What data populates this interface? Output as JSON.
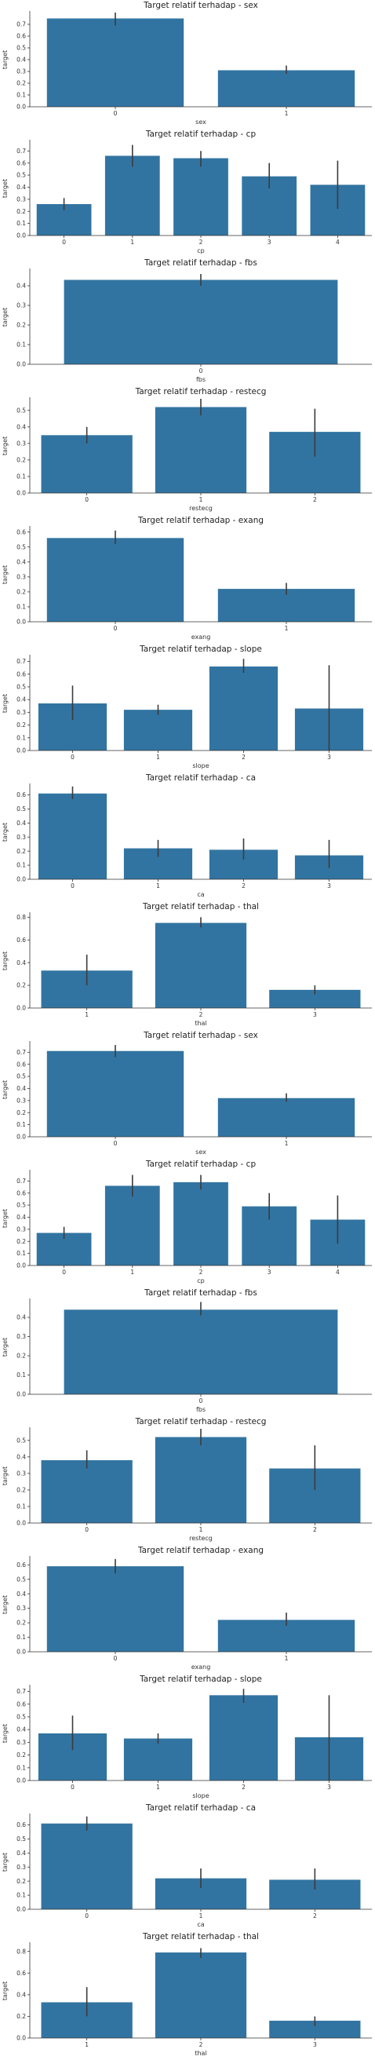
{
  "chart_data": [
    {
      "type": "bar",
      "title": "Target relatif terhadap - sex",
      "xlabel": "sex",
      "ylabel": "target",
      "categories": [
        "0",
        "1"
      ],
      "values": [
        0.75,
        0.31
      ],
      "errors": [
        [
          0.69,
          0.8
        ],
        [
          0.28,
          0.35
        ]
      ],
      "ylim": [
        0,
        0.8
      ],
      "yticks": [
        "0.0",
        "0.1",
        "0.2",
        "0.3",
        "0.4",
        "0.5",
        "0.6",
        "0.7"
      ]
    },
    {
      "type": "bar",
      "title": "Target relatif terhadap - cp",
      "xlabel": "cp",
      "ylabel": "target",
      "categories": [
        "0",
        "1",
        "2",
        "3",
        "4"
      ],
      "values": [
        0.26,
        0.66,
        0.64,
        0.49,
        0.42
      ],
      "errors": [
        [
          0.21,
          0.31
        ],
        [
          0.57,
          0.75
        ],
        [
          0.57,
          0.7
        ],
        [
          0.39,
          0.6
        ],
        [
          0.22,
          0.62
        ]
      ],
      "ylim": [
        0,
        0.78
      ],
      "yticks": [
        "0.0",
        "0.1",
        "0.2",
        "0.3",
        "0.4",
        "0.5",
        "0.6",
        "0.7"
      ]
    },
    {
      "type": "bar",
      "title": "Target relatif terhadap - fbs",
      "xlabel": "fbs",
      "ylabel": "target",
      "categories": [
        "0"
      ],
      "values": [
        0.43
      ],
      "errors": [
        [
          0.4,
          0.46
        ]
      ],
      "ylim": [
        0,
        0.48
      ],
      "yticks": [
        "0.0",
        "0.1",
        "0.2",
        "0.3",
        "0.4"
      ]
    },
    {
      "type": "bar",
      "title": "Target relatif terhadap - restecg",
      "xlabel": "restecg",
      "ylabel": "target",
      "categories": [
        "0",
        "1",
        "2"
      ],
      "values": [
        0.35,
        0.52,
        0.37
      ],
      "errors": [
        [
          0.3,
          0.4
        ],
        [
          0.47,
          0.57
        ],
        [
          0.22,
          0.51
        ]
      ],
      "ylim": [
        0,
        0.57
      ],
      "yticks": [
        "0.0",
        "0.1",
        "0.2",
        "0.3",
        "0.4",
        "0.5"
      ]
    },
    {
      "type": "bar",
      "title": "Target relatif terhadap - exang",
      "xlabel": "exang",
      "ylabel": "target",
      "categories": [
        "0",
        "1"
      ],
      "values": [
        0.56,
        0.22
      ],
      "errors": [
        [
          0.52,
          0.61
        ],
        [
          0.18,
          0.26
        ]
      ],
      "ylim": [
        0,
        0.63
      ],
      "yticks": [
        "0.0",
        "0.1",
        "0.2",
        "0.3",
        "0.4",
        "0.5",
        "0.6"
      ]
    },
    {
      "type": "bar",
      "title": "Target relatif terhadap - slope",
      "xlabel": "slope",
      "ylabel": "target",
      "categories": [
        "0",
        "1",
        "2",
        "3"
      ],
      "values": [
        0.37,
        0.32,
        0.66,
        0.33
      ],
      "errors": [
        [
          0.24,
          0.51
        ],
        [
          0.28,
          0.36
        ],
        [
          0.61,
          0.72
        ],
        [
          0.0,
          0.67
        ]
      ],
      "ylim": [
        0,
        0.74
      ],
      "yticks": [
        "0.0",
        "0.1",
        "0.2",
        "0.3",
        "0.4",
        "0.5",
        "0.6",
        "0.7"
      ]
    },
    {
      "type": "bar",
      "title": "Target relatif terhadap - ca",
      "xlabel": "ca",
      "ylabel": "target",
      "categories": [
        "0",
        "1",
        "2",
        "3"
      ],
      "values": [
        0.61,
        0.22,
        0.21,
        0.17
      ],
      "errors": [
        [
          0.57,
          0.66
        ],
        [
          0.16,
          0.28
        ],
        [
          0.14,
          0.29
        ],
        [
          0.08,
          0.28
        ]
      ],
      "ylim": [
        0,
        0.67
      ],
      "yticks": [
        "0.0",
        "0.1",
        "0.2",
        "0.3",
        "0.4",
        "0.5",
        "0.6"
      ]
    },
    {
      "type": "bar",
      "title": "Target relatif terhadap - thal",
      "xlabel": "thal",
      "ylabel": "target",
      "categories": [
        "1",
        "2",
        "3"
      ],
      "values": [
        0.33,
        0.75,
        0.16
      ],
      "errors": [
        [
          0.2,
          0.47
        ],
        [
          0.71,
          0.8
        ],
        [
          0.12,
          0.2
        ]
      ],
      "ylim": [
        0,
        0.83
      ],
      "yticks": [
        "0.0",
        "0.2",
        "0.4",
        "0.6",
        "0.8"
      ]
    },
    {
      "type": "bar",
      "title": "Target relatif terhadap - sex",
      "xlabel": "sex",
      "ylabel": "target",
      "categories": [
        "0",
        "1"
      ],
      "values": [
        0.71,
        0.32
      ],
      "errors": [
        [
          0.66,
          0.76
        ],
        [
          0.29,
          0.36
        ]
      ],
      "ylim": [
        0,
        0.78
      ],
      "yticks": [
        "0.0",
        "0.1",
        "0.2",
        "0.3",
        "0.4",
        "0.5",
        "0.6",
        "0.7"
      ]
    },
    {
      "type": "bar",
      "title": "Target relatif terhadap - cp",
      "xlabel": "cp",
      "ylabel": "target",
      "categories": [
        "0",
        "1",
        "2",
        "3",
        "4"
      ],
      "values": [
        0.27,
        0.66,
        0.69,
        0.49,
        0.38
      ],
      "errors": [
        [
          0.22,
          0.32
        ],
        [
          0.57,
          0.75
        ],
        [
          0.63,
          0.75
        ],
        [
          0.38,
          0.6
        ],
        [
          0.18,
          0.58
        ]
      ],
      "ylim": [
        0,
        0.78
      ],
      "yticks": [
        "0.0",
        "0.1",
        "0.2",
        "0.3",
        "0.4",
        "0.5",
        "0.6",
        "0.7"
      ]
    },
    {
      "type": "bar",
      "title": "Target relatif terhadap - fbs",
      "xlabel": "fbs",
      "ylabel": "target",
      "categories": [
        "0"
      ],
      "values": [
        0.44
      ],
      "errors": [
        [
          0.41,
          0.48
        ]
      ],
      "ylim": [
        0,
        0.49
      ],
      "yticks": [
        "0.0",
        "0.1",
        "0.2",
        "0.3",
        "0.4"
      ]
    },
    {
      "type": "bar",
      "title": "Target relatif terhadap - restecg",
      "xlabel": "restecg",
      "ylabel": "target",
      "categories": [
        "0",
        "1",
        "2"
      ],
      "values": [
        0.38,
        0.52,
        0.33
      ],
      "errors": [
        [
          0.33,
          0.44
        ],
        [
          0.47,
          0.57
        ],
        [
          0.2,
          0.47
        ]
      ],
      "ylim": [
        0,
        0.57
      ],
      "yticks": [
        "0.0",
        "0.1",
        "0.2",
        "0.3",
        "0.4",
        "0.5"
      ]
    },
    {
      "type": "bar",
      "title": "Target relatif terhadap - exang",
      "xlabel": "exang",
      "ylabel": "target",
      "categories": [
        "0",
        "1"
      ],
      "values": [
        0.59,
        0.22
      ],
      "errors": [
        [
          0.54,
          0.64
        ],
        [
          0.18,
          0.27
        ]
      ],
      "ylim": [
        0,
        0.65
      ],
      "yticks": [
        "0.0",
        "0.1",
        "0.2",
        "0.3",
        "0.4",
        "0.5",
        "0.6"
      ]
    },
    {
      "type": "bar",
      "title": "Target relatif terhadap - slope",
      "xlabel": "slope",
      "ylabel": "target",
      "categories": [
        "0",
        "1",
        "2",
        "3"
      ],
      "values": [
        0.37,
        0.33,
        0.67,
        0.34
      ],
      "errors": [
        [
          0.24,
          0.51
        ],
        [
          0.29,
          0.37
        ],
        [
          0.61,
          0.72
        ],
        [
          0.0,
          0.67
        ]
      ],
      "ylim": [
        0,
        0.74
      ],
      "yticks": [
        "0.0",
        "0.1",
        "0.2",
        "0.3",
        "0.4",
        "0.5",
        "0.6",
        "0.7"
      ]
    },
    {
      "type": "bar",
      "title": "Target relatif terhadap - ca",
      "xlabel": "ca",
      "ylabel": "target",
      "categories": [
        "0",
        "1",
        "2"
      ],
      "values": [
        0.61,
        0.22,
        0.21
      ],
      "errors": [
        [
          0.56,
          0.66
        ],
        [
          0.15,
          0.29
        ],
        [
          0.14,
          0.29
        ]
      ],
      "ylim": [
        0,
        0.67
      ],
      "yticks": [
        "0.0",
        "0.1",
        "0.2",
        "0.3",
        "0.4",
        "0.5",
        "0.6"
      ]
    },
    {
      "type": "bar",
      "title": "Target relatif terhadap - thal",
      "xlabel": "thal",
      "ylabel": "target",
      "categories": [
        "1",
        "2",
        "3"
      ],
      "values": [
        0.33,
        0.79,
        0.16
      ],
      "errors": [
        [
          0.2,
          0.47
        ],
        [
          0.74,
          0.83
        ],
        [
          0.11,
          0.2
        ]
      ],
      "ylim": [
        0,
        0.87
      ],
      "yticks": [
        "0.0",
        "0.2",
        "0.4",
        "0.6",
        "0.8"
      ]
    }
  ],
  "colors": {
    "bar": "#3274a1",
    "errorbar": "#3b3b3b",
    "axis": "#333333"
  }
}
